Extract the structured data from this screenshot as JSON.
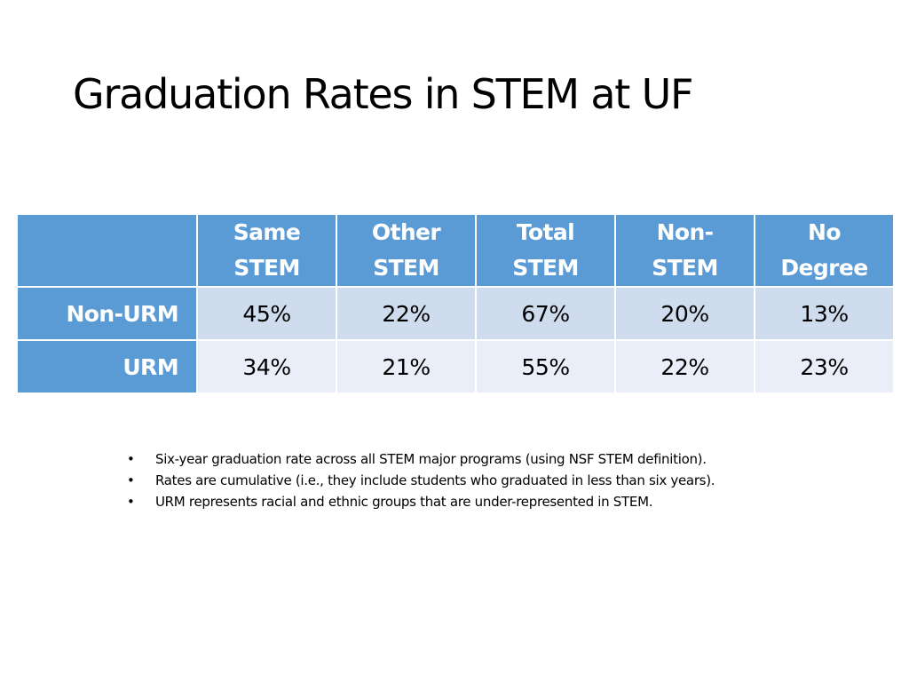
{
  "slide": {
    "title": "Graduation Rates in STEM at UF"
  },
  "table": {
    "corner": "",
    "columns": [
      {
        "line1": "Same",
        "line2": "STEM"
      },
      {
        "line1": "Other",
        "line2": "STEM"
      },
      {
        "line1": "Total",
        "line2": "STEM"
      },
      {
        "line1": "Non-",
        "line2": "STEM"
      },
      {
        "line1": "No",
        "line2": "Degree"
      }
    ],
    "rows": [
      {
        "label": "Non-URM",
        "values": [
          "45%",
          "22%",
          "67%",
          "20%",
          "13%"
        ]
      },
      {
        "label": "URM",
        "values": [
          "34%",
          "21%",
          "55%",
          "22%",
          "23%"
        ]
      }
    ]
  },
  "notes": {
    "bullet_glyph": "•",
    "items": [
      "Six-year graduation rate across all STEM major programs (using NSF STEM definition).",
      "Rates are cumulative (i.e., they include students who graduated in less than six years).",
      "URM represents racial and ethnic groups that are under-represented in STEM."
    ]
  },
  "colors": {
    "header_fill": "#5b9bd5",
    "row_fill_1": "#cfdcee",
    "row_fill_2": "#e9eef8",
    "header_text": "#ffffff"
  }
}
